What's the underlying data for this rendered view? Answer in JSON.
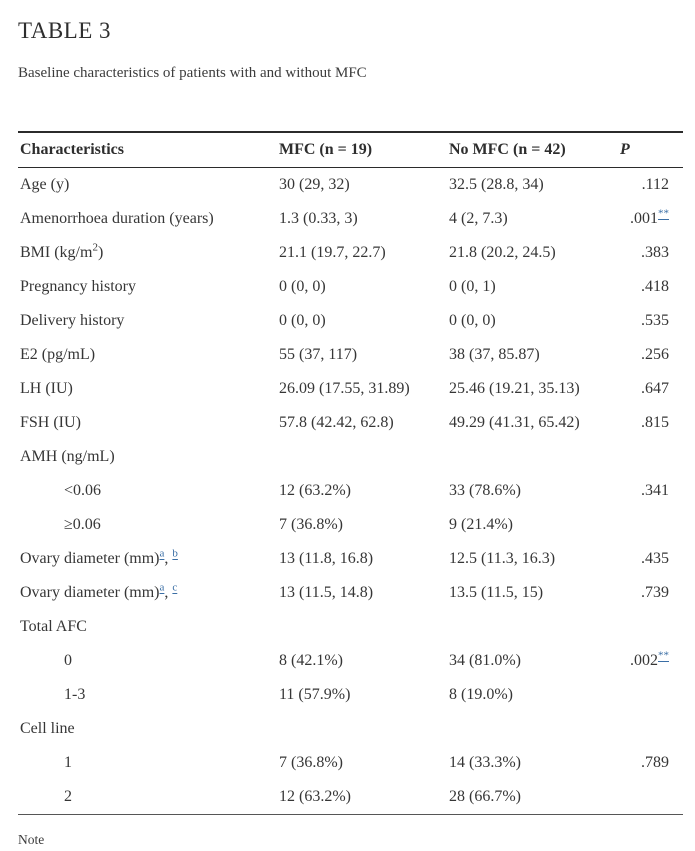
{
  "page": {
    "title": "TABLE 3",
    "subtitle": "Baseline characteristics of patients with and without MFC",
    "note_label": "Note"
  },
  "theme": {
    "link_color": "#3a6ea5",
    "text_color": "#363636",
    "rule_color": "#2b2b2b"
  },
  "table": {
    "columns": [
      "Characteristics",
      "MFC (n = 19)",
      "No MFC (n = 42)",
      "P"
    ],
    "rows": [
      {
        "indent": false,
        "label": "Age (y)",
        "mfc": "30 (29, 32)",
        "no_mfc": "32.5 (28.8, 34)",
        "p": ".112"
      },
      {
        "indent": false,
        "label": "Amenorrhoea duration (years)",
        "mfc": "1.3 (0.33, 3)",
        "no_mfc": "4 (2, 7.3)",
        "p": [
          {
            "t": ".001"
          },
          {
            "t": "**",
            "s": "sup-link"
          }
        ]
      },
      {
        "indent": false,
        "label": [
          {
            "t": "BMI (kg/m"
          },
          {
            "t": "2",
            "s": "sup"
          },
          {
            "t": ")"
          }
        ],
        "mfc": "21.1 (19.7, 22.7)",
        "no_mfc": "21.8 (20.2, 24.5)",
        "p": ".383"
      },
      {
        "indent": false,
        "label": "Pregnancy history",
        "mfc": "0 (0, 0)",
        "no_mfc": "0 (0, 1)",
        "p": ".418"
      },
      {
        "indent": false,
        "label": "Delivery history",
        "mfc": "0 (0, 0)",
        "no_mfc": "0 (0, 0)",
        "p": ".535"
      },
      {
        "indent": false,
        "label": "E2 (pg/mL)",
        "mfc": "55 (37, 117)",
        "no_mfc": "38 (37, 85.87)",
        "p": ".256"
      },
      {
        "indent": false,
        "label": "LH (IU)",
        "mfc": "26.09 (17.55, 31.89)",
        "no_mfc": "25.46 (19.21, 35.13)",
        "p": ".647"
      },
      {
        "indent": false,
        "label": "FSH (IU)",
        "mfc": "57.8 (42.42, 62.8)",
        "no_mfc": "49.29 (41.31, 65.42)",
        "p": ".815"
      },
      {
        "indent": false,
        "label": "AMH (ng/mL)",
        "mfc": "",
        "no_mfc": "",
        "p": ""
      },
      {
        "indent": true,
        "label": "<0.06",
        "mfc": "12 (63.2%)",
        "no_mfc": "33 (78.6%)",
        "p": ".341"
      },
      {
        "indent": true,
        "label": "≥0.06",
        "mfc": "7 (36.8%)",
        "no_mfc": "9 (21.4%)",
        "p": ""
      },
      {
        "indent": false,
        "label": [
          {
            "t": "Ovary diameter (mm)"
          },
          {
            "t": "a",
            "s": "sup-link"
          },
          {
            "t": ", "
          },
          {
            "t": "b",
            "s": "sup-link"
          }
        ],
        "mfc": "13 (11.8, 16.8)",
        "no_mfc": "12.5 (11.3, 16.3)",
        "p": ".435"
      },
      {
        "indent": false,
        "label": [
          {
            "t": "Ovary diameter (mm)"
          },
          {
            "t": "a",
            "s": "sup-link"
          },
          {
            "t": ", "
          },
          {
            "t": "c",
            "s": "sup-link"
          }
        ],
        "mfc": "13 (11.5, 14.8)",
        "no_mfc": "13.5 (11.5, 15)",
        "p": ".739"
      },
      {
        "indent": false,
        "label": "Total AFC",
        "mfc": "",
        "no_mfc": "",
        "p": ""
      },
      {
        "indent": true,
        "label": "0",
        "mfc": "8 (42.1%)",
        "no_mfc": "34 (81.0%)",
        "p": [
          {
            "t": ".002"
          },
          {
            "t": "**",
            "s": "sup-link"
          }
        ]
      },
      {
        "indent": true,
        "label": "1-3",
        "mfc": "11 (57.9%)",
        "no_mfc": "8 (19.0%)",
        "p": ""
      },
      {
        "indent": false,
        "label": "Cell line",
        "mfc": "",
        "no_mfc": "",
        "p": ""
      },
      {
        "indent": true,
        "label": "1",
        "mfc": "7 (36.8%)",
        "no_mfc": "14 (33.3%)",
        "p": ".789"
      },
      {
        "indent": true,
        "label": "2",
        "mfc": "12 (63.2%)",
        "no_mfc": "28 (66.7%)",
        "p": ""
      }
    ]
  }
}
